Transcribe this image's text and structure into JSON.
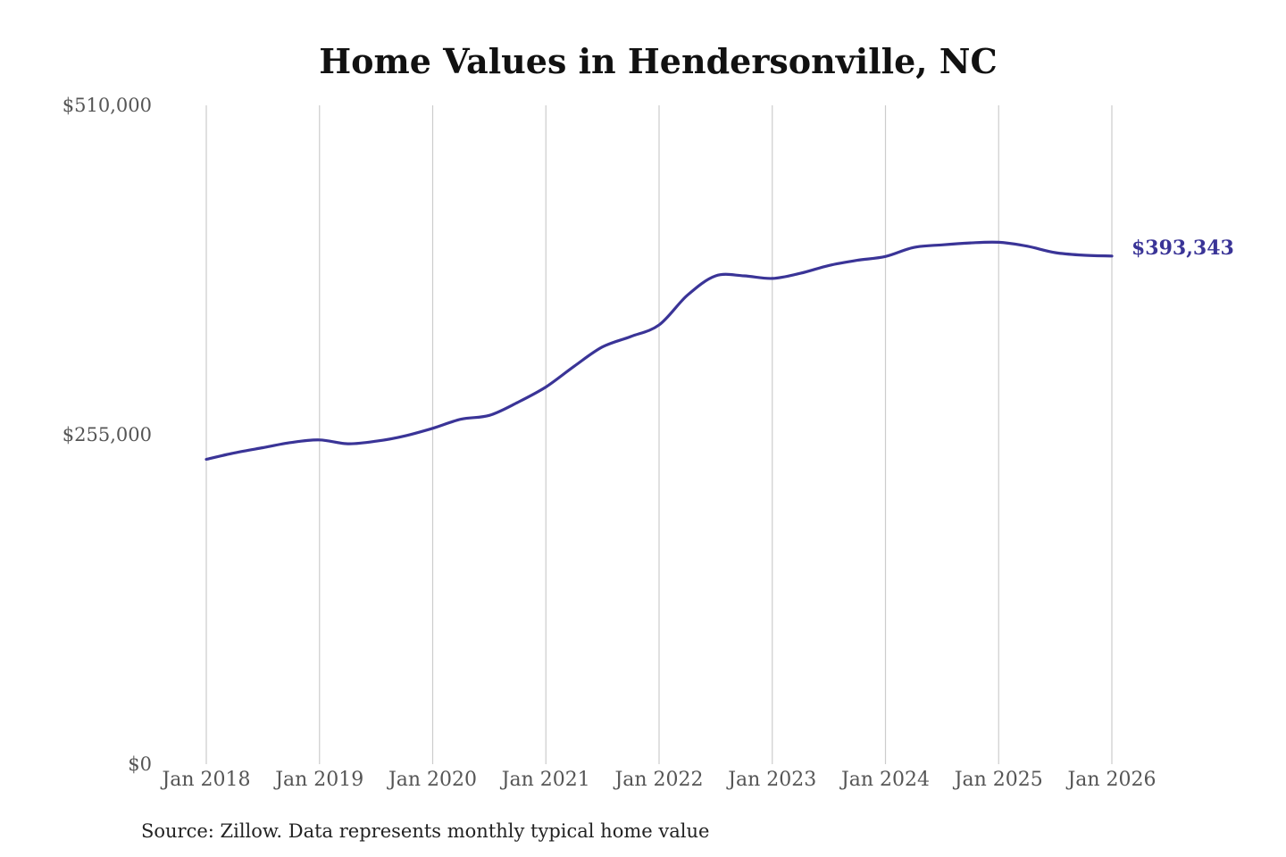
{
  "chart_data": {
    "type": "line",
    "title": "Home Values in Hendersonville, NC",
    "source": "Source: Zillow. Data represents monthly typical home value",
    "xlabel": "",
    "ylabel": "",
    "ylim": [
      0,
      510000
    ],
    "yticks": [
      {
        "value": 0,
        "label": "$0"
      },
      {
        "value": 255000,
        "label": "$255,000"
      },
      {
        "value": 510000,
        "label": "$510,000"
      }
    ],
    "xlim": [
      "2018-01",
      "2026-01"
    ],
    "xticks": [
      {
        "date": "2018-01",
        "label": "Jan 2018"
      },
      {
        "date": "2019-01",
        "label": "Jan 2019"
      },
      {
        "date": "2020-01",
        "label": "Jan 2020"
      },
      {
        "date": "2021-01",
        "label": "Jan 2021"
      },
      {
        "date": "2022-01",
        "label": "Jan 2022"
      },
      {
        "date": "2023-01",
        "label": "Jan 2023"
      },
      {
        "date": "2024-01",
        "label": "Jan 2024"
      },
      {
        "date": "2025-01",
        "label": "Jan 2025"
      },
      {
        "date": "2026-01",
        "label": "Jan 2026"
      }
    ],
    "grid": "vertical",
    "line_color": "#3a3497",
    "end_label": "$393,343",
    "series": [
      {
        "color": "#3a3497",
        "points": [
          {
            "x": "2018-01",
            "y": 236000
          },
          {
            "x": "2018-04",
            "y": 241000
          },
          {
            "x": "2018-07",
            "y": 245000
          },
          {
            "x": "2018-10",
            "y": 249000
          },
          {
            "x": "2019-01",
            "y": 251000
          },
          {
            "x": "2019-04",
            "y": 248000
          },
          {
            "x": "2019-07",
            "y": 250000
          },
          {
            "x": "2019-10",
            "y": 254000
          },
          {
            "x": "2020-01",
            "y": 260000
          },
          {
            "x": "2020-04",
            "y": 267000
          },
          {
            "x": "2020-07",
            "y": 270000
          },
          {
            "x": "2020-10",
            "y": 280000
          },
          {
            "x": "2021-01",
            "y": 292000
          },
          {
            "x": "2021-04",
            "y": 308000
          },
          {
            "x": "2021-07",
            "y": 323000
          },
          {
            "x": "2021-10",
            "y": 331000
          },
          {
            "x": "2022-01",
            "y": 340000
          },
          {
            "x": "2022-04",
            "y": 363000
          },
          {
            "x": "2022-07",
            "y": 378000
          },
          {
            "x": "2022-10",
            "y": 378000
          },
          {
            "x": "2023-01",
            "y": 376000
          },
          {
            "x": "2023-04",
            "y": 380000
          },
          {
            "x": "2023-07",
            "y": 386000
          },
          {
            "x": "2023-10",
            "y": 390000
          },
          {
            "x": "2024-01",
            "y": 393000
          },
          {
            "x": "2024-04",
            "y": 400000
          },
          {
            "x": "2024-07",
            "y": 402000
          },
          {
            "x": "2024-10",
            "y": 403500
          },
          {
            "x": "2025-01",
            "y": 404000
          },
          {
            "x": "2025-04",
            "y": 401000
          },
          {
            "x": "2025-07",
            "y": 396000
          },
          {
            "x": "2025-10",
            "y": 394000
          },
          {
            "x": "2026-01",
            "y": 393343
          }
        ]
      }
    ]
  }
}
